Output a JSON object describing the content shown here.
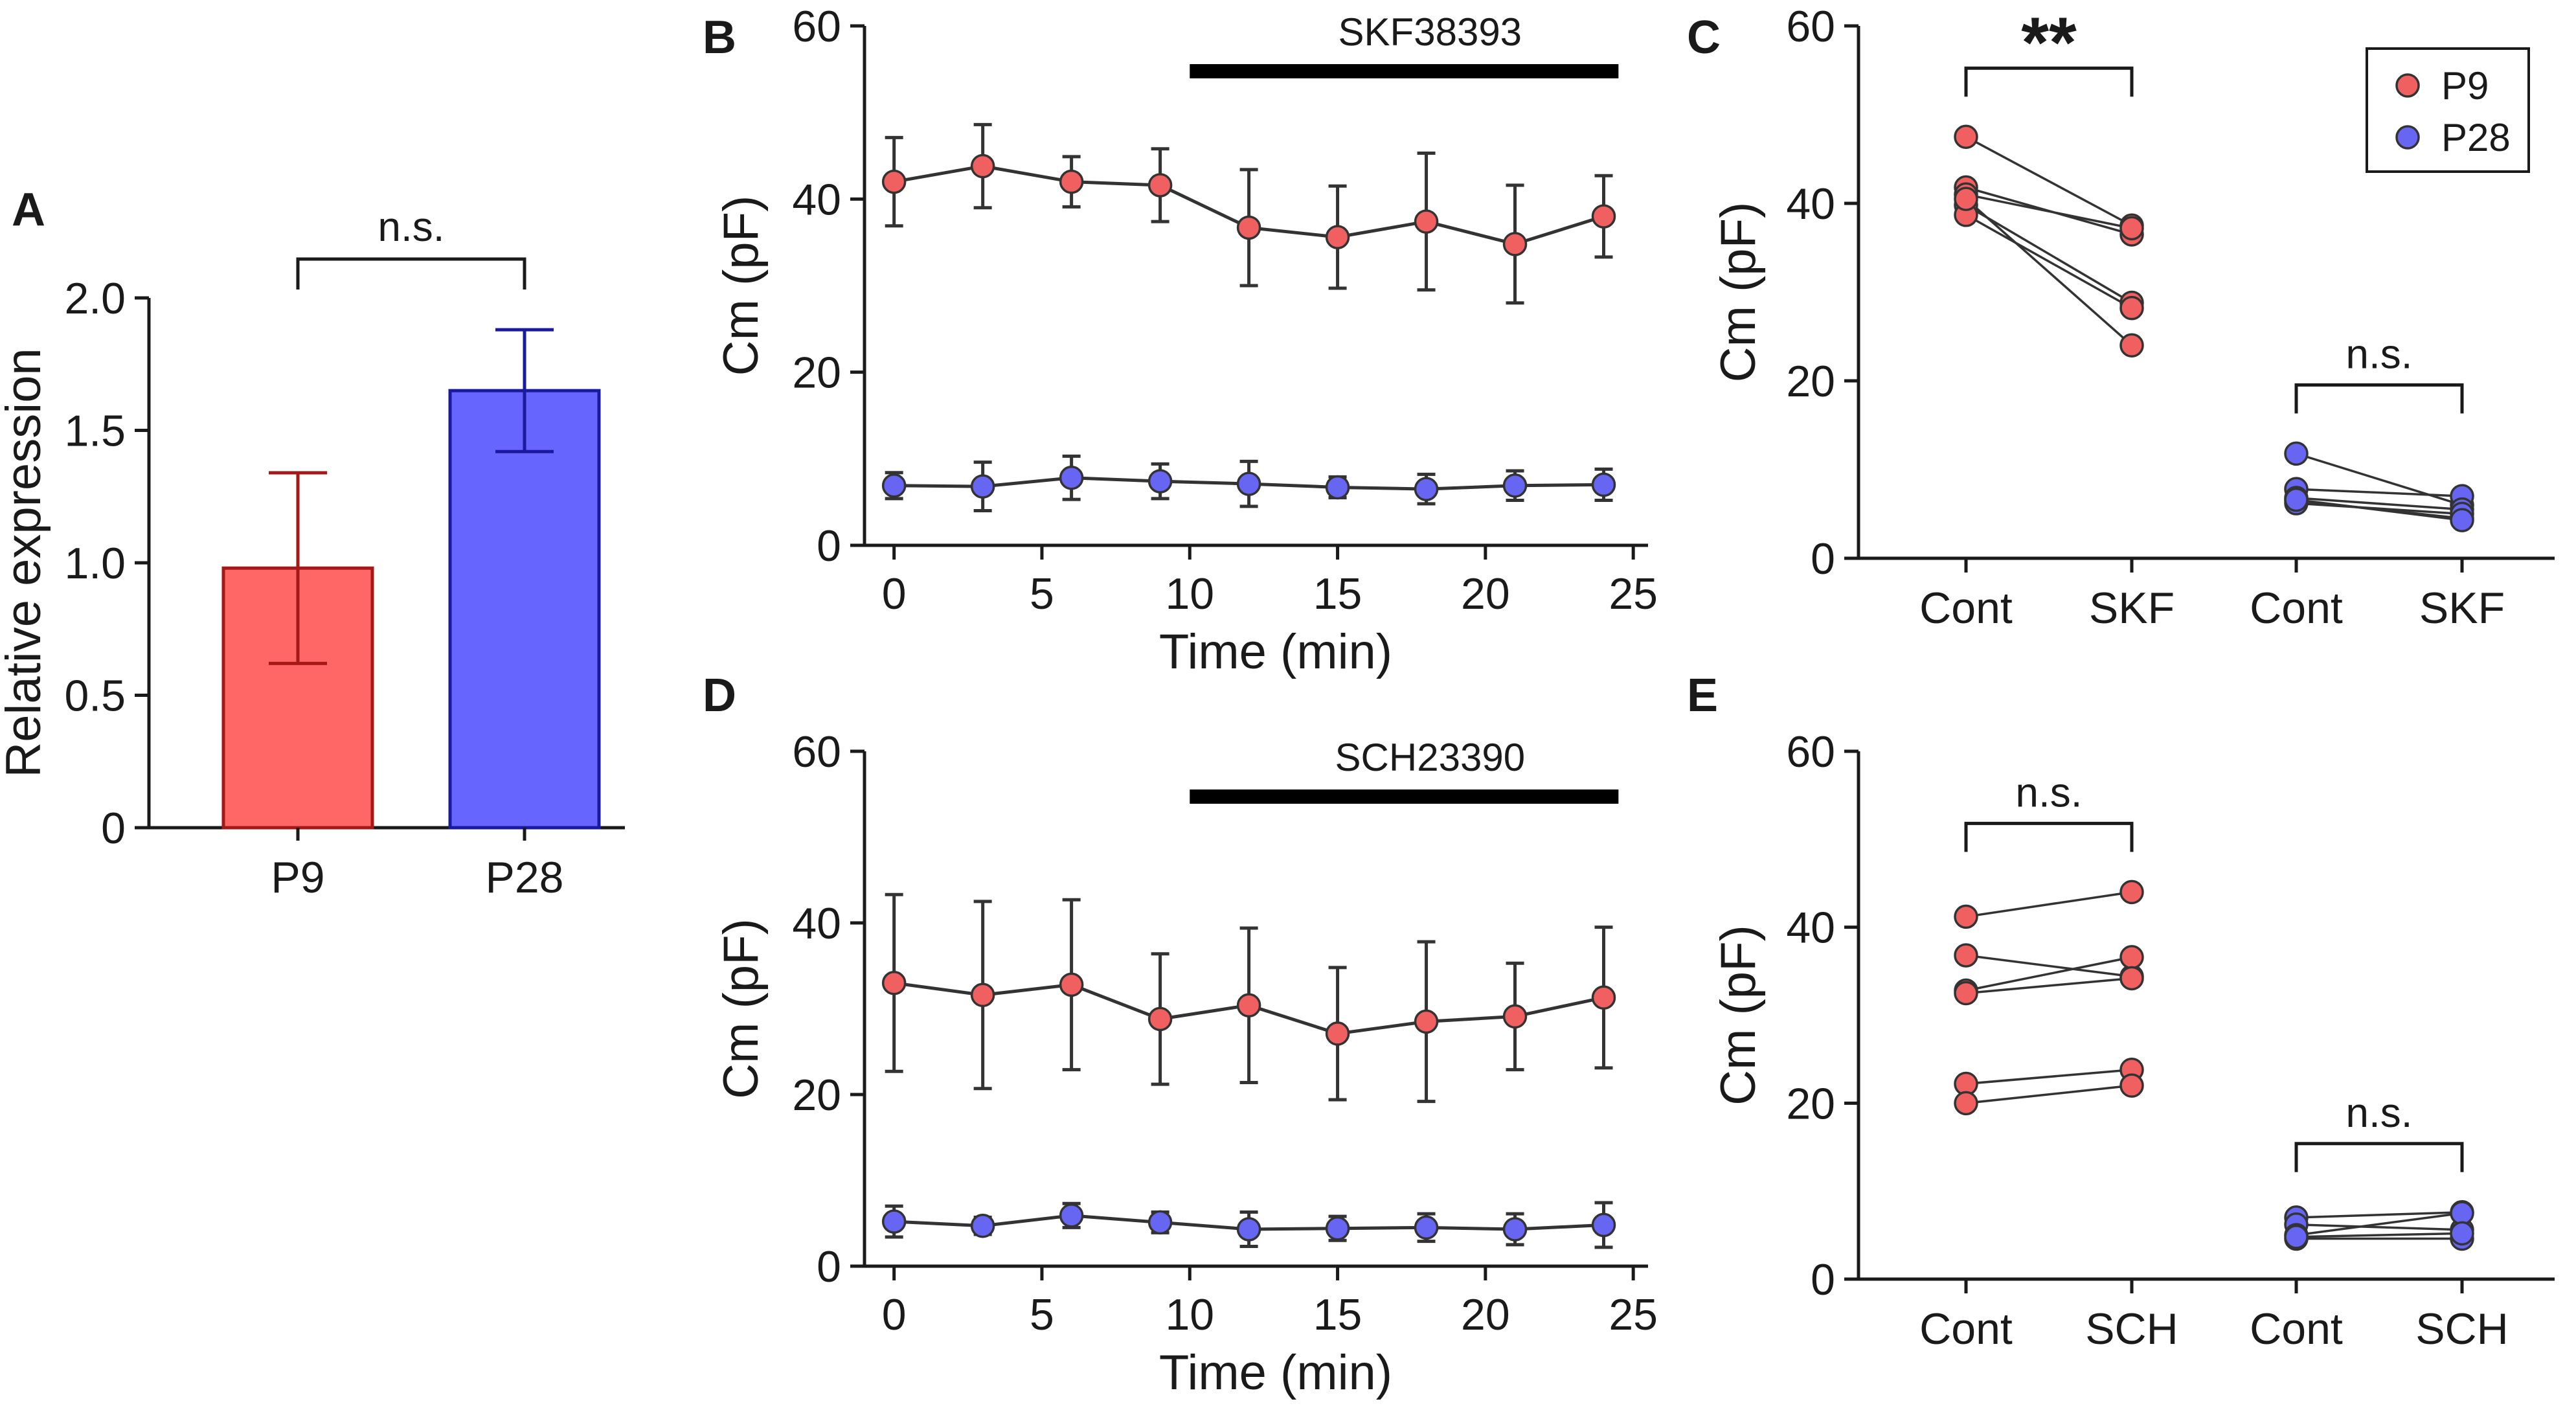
{
  "colors": {
    "p9": "#f06060",
    "p28": "#6666f2",
    "p9_bar": "#ff6666",
    "p9_bar_stroke": "#a41818",
    "p28_bar": "#6666ff",
    "p28_bar_stroke": "#1a1aa0",
    "axis": "#1a1a1a",
    "line": "#333333"
  },
  "chart_data": [
    {
      "id": "A",
      "panel_label": "A",
      "type": "bar",
      "categories": [
        "P9",
        "P28"
      ],
      "values": [
        0.98,
        1.65
      ],
      "errors": [
        0.36,
        0.23
      ],
      "ylabel": "Relative expression",
      "xlabel": "",
      "ylim": [
        0,
        2.0
      ],
      "yticks": [
        0,
        0.5,
        1.0,
        1.5,
        2.0
      ],
      "ytick_labels": [
        "0",
        "0.5",
        "1.0",
        "1.5",
        "2.0"
      ],
      "significance": [
        {
          "pair": [
            0,
            1
          ],
          "label": "n.s."
        }
      ]
    },
    {
      "id": "B",
      "panel_label": "B",
      "type": "line",
      "x": [
        0,
        3,
        6,
        9,
        12,
        15,
        18,
        21,
        24
      ],
      "series": [
        {
          "name": "P9",
          "values": [
            42,
            43.8,
            42,
            41.6,
            36.7,
            35.6,
            37.4,
            34.8,
            38
          ],
          "errors": [
            5.1,
            4.8,
            2.9,
            4.2,
            6.7,
            5.9,
            7.9,
            6.8,
            4.7
          ]
        },
        {
          "name": "P28",
          "values": [
            6.9,
            6.8,
            7.8,
            7.4,
            7.1,
            6.7,
            6.5,
            6.9,
            7.0
          ],
          "errors": [
            1.5,
            2.8,
            2.5,
            2.0,
            2.6,
            1.2,
            1.7,
            1.7,
            1.8
          ]
        }
      ],
      "xlabel": "Time (min)",
      "ylabel": "Cm (pF)",
      "xlim": [
        -1,
        25.5
      ],
      "ylim": [
        0,
        60
      ],
      "xticks": [
        0,
        5,
        10,
        15,
        20,
        25
      ],
      "yticks": [
        0,
        20,
        40,
        60
      ],
      "drug": {
        "label": "SKF38393",
        "start": 10,
        "end": 24.5
      }
    },
    {
      "id": "C",
      "panel_label": "C",
      "type": "scatter",
      "categories": [
        "Cont",
        "SKF",
        "Cont",
        "SKF"
      ],
      "groups": [
        {
          "name": "P9",
          "pairs": [
            [
              47.5,
              37.5
            ],
            [
              41.8,
              36.5
            ],
            [
              41.0,
              37.2
            ],
            [
              39.8,
              28.8
            ],
            [
              38.7,
              28.2
            ],
            [
              40.5,
              24.0
            ]
          ]
        },
        {
          "name": "P28",
          "pairs": [
            [
              11.8,
              6.0
            ],
            [
              7.8,
              7.0
            ],
            [
              6.8,
              5.5
            ],
            [
              6.5,
              4.5
            ],
            [
              6.2,
              5.0
            ],
            [
              6.6,
              4.3
            ]
          ]
        }
      ],
      "ylabel": "Cm (pF)",
      "ylim": [
        0,
        60
      ],
      "yticks": [
        0,
        20,
        40,
        60
      ],
      "significance": [
        {
          "group": "P9",
          "label": "**"
        },
        {
          "group": "P28",
          "label": "n.s."
        }
      ],
      "legend": [
        "P9",
        "P28"
      ]
    },
    {
      "id": "D",
      "panel_label": "D",
      "type": "line",
      "x": [
        0,
        3,
        6,
        9,
        12,
        15,
        18,
        21,
        24
      ],
      "series": [
        {
          "name": "P9",
          "values": [
            33,
            31.6,
            32.8,
            28.8,
            30.4,
            27.1,
            28.5,
            29.1,
            31.3
          ],
          "errors": [
            10.3,
            10.9,
            9.9,
            7.6,
            9.0,
            7.7,
            9.3,
            6.2,
            8.2
          ]
        },
        {
          "name": "P28",
          "values": [
            5.2,
            4.7,
            5.9,
            5.1,
            4.3,
            4.4,
            4.5,
            4.3,
            4.8
          ],
          "errors": [
            1.8,
            1.0,
            1.4,
            1.2,
            2.0,
            1.4,
            1.6,
            1.8,
            2.6
          ]
        }
      ],
      "xlabel": "Time (min)",
      "ylabel": "Cm (pF)",
      "xlim": [
        -1,
        25.5
      ],
      "ylim": [
        0,
        60
      ],
      "xticks": [
        0,
        5,
        10,
        15,
        20,
        25
      ],
      "yticks": [
        0,
        20,
        40,
        60
      ],
      "drug": {
        "label": "SCH23390",
        "start": 10,
        "end": 24.5
      }
    },
    {
      "id": "E",
      "panel_label": "E",
      "type": "scatter",
      "categories": [
        "Cont",
        "SCH",
        "Cont",
        "SCH"
      ],
      "groups": [
        {
          "name": "P9",
          "pairs": [
            [
              41.2,
              44.0
            ],
            [
              36.8,
              34.4
            ],
            [
              32.8,
              36.6
            ],
            [
              32.5,
              34.2
            ],
            [
              22.2,
              23.8
            ],
            [
              20.0,
              22.0
            ]
          ]
        },
        {
          "name": "P28",
          "pairs": [
            [
              7.0,
              7.6
            ],
            [
              6.2,
              5.6
            ],
            [
              5.0,
              7.5
            ],
            [
              4.6,
              4.6
            ],
            [
              4.8,
              5.2
            ]
          ]
        }
      ],
      "ylabel": "Cm (pF)",
      "ylim": [
        0,
        60
      ],
      "yticks": [
        0,
        20,
        40,
        60
      ],
      "significance": [
        {
          "group": "P9",
          "label": "n.s."
        },
        {
          "group": "P28",
          "label": "n.s."
        }
      ]
    }
  ]
}
